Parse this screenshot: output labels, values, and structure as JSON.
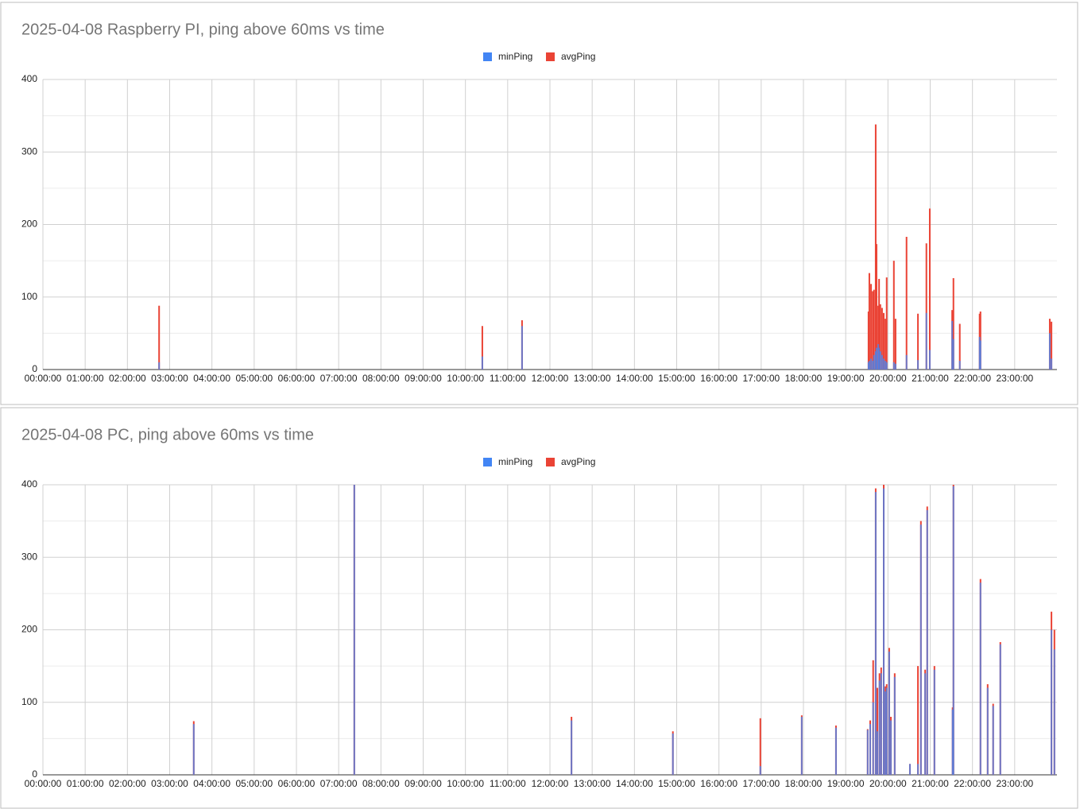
{
  "chart_data": [
    {
      "type": "bar",
      "title": "2025-04-08 Raspberry PI, ping above 60ms vs time",
      "x": [
        2.75,
        10.4,
        11.34,
        19.54,
        19.56,
        19.6,
        19.64,
        19.67,
        19.71,
        19.73,
        19.77,
        19.79,
        19.82,
        19.86,
        19.9,
        19.94,
        19.97,
        20.14,
        20.18,
        20.44,
        20.71,
        20.91,
        20.99,
        21.52,
        21.55,
        21.7,
        22.17,
        22.19,
        23.83,
        23.87
      ],
      "series": [
        {
          "name": "minPing",
          "color": "#4285f4",
          "values": [
            10,
            18,
            60,
            10,
            12,
            15,
            12,
            20,
            25,
            30,
            35,
            30,
            25,
            20,
            15,
            12,
            10,
            10,
            8,
            20,
            13,
            78,
            27,
            67,
            42,
            12,
            45,
            40,
            50,
            15
          ]
        },
        {
          "name": "avgPing",
          "color": "#ea4335",
          "values": [
            88,
            60,
            68,
            80,
            133,
            118,
            108,
            110,
            338,
            173,
            88,
            125,
            90,
            85,
            78,
            70,
            127,
            150,
            70,
            183,
            77,
            174,
            222,
            82,
            126,
            63,
            77,
            80,
            70,
            66
          ]
        }
      ],
      "xlim": [
        0,
        24
      ],
      "ylim": [
        0,
        400
      ],
      "xticks": [
        {
          "value": 0,
          "label": "00:00:00"
        },
        {
          "value": 1,
          "label": "01:00:00"
        },
        {
          "value": 2,
          "label": "02:00:00"
        },
        {
          "value": 3,
          "label": "03:00:00"
        },
        {
          "value": 4,
          "label": "04:00:00"
        },
        {
          "value": 5,
          "label": "05:00:00"
        },
        {
          "value": 6,
          "label": "06:00:00"
        },
        {
          "value": 7,
          "label": "07:00:00"
        },
        {
          "value": 8,
          "label": "08:00:00"
        },
        {
          "value": 9,
          "label": "09:00:00"
        },
        {
          "value": 10,
          "label": "10:00:00"
        },
        {
          "value": 11,
          "label": "11:00:00"
        },
        {
          "value": 12,
          "label": "12:00:00"
        },
        {
          "value": 13,
          "label": "13:00:00"
        },
        {
          "value": 14,
          "label": "14:00:00"
        },
        {
          "value": 15,
          "label": "15:00:00"
        },
        {
          "value": 16,
          "label": "16:00:00"
        },
        {
          "value": 17,
          "label": "17:00:00"
        },
        {
          "value": 18,
          "label": "18:00:00"
        },
        {
          "value": 19,
          "label": "19:00:00"
        },
        {
          "value": 20,
          "label": "20:00:00"
        },
        {
          "value": 21,
          "label": "21:00:00"
        },
        {
          "value": 22,
          "label": "22:00:00"
        },
        {
          "value": 23,
          "label": "23:00:00"
        }
      ],
      "yticks": [
        0,
        100,
        200,
        300,
        400
      ],
      "minor_yticks": [
        50,
        150,
        250,
        350
      ],
      "grid": true,
      "legend": "top"
    },
    {
      "type": "bar",
      "title": "2025-04-08 PC, ping above 60ms vs time",
      "x": [
        3.57,
        7.37,
        12.51,
        14.91,
        16.98,
        17.96,
        18.77,
        19.52,
        19.58,
        19.65,
        19.71,
        19.75,
        19.8,
        19.84,
        19.9,
        19.94,
        19.97,
        20.03,
        20.07,
        20.16,
        20.52,
        20.71,
        20.78,
        20.88,
        20.93,
        21.1,
        21.53,
        21.55,
        22.19,
        22.36,
        22.49,
        22.66,
        23.87,
        23.94
      ],
      "series": [
        {
          "name": "minPing",
          "color": "#4285f4",
          "values": [
            70,
            400,
            75,
            57,
            12,
            80,
            65,
            62,
            70,
            100,
            390,
            60,
            130,
            140,
            395,
            115,
            120,
            170,
            75,
            135,
            15,
            15,
            345,
            140,
            365,
            145,
            90,
            398,
            265,
            120,
            95,
            180,
            200,
            173
          ]
        },
        {
          "name": "avgPing",
          "color": "#ea4335",
          "values": [
            74,
            400,
            80,
            60,
            78,
            82,
            68,
            63,
            75,
            158,
            395,
            120,
            140,
            148,
            400,
            122,
            125,
            175,
            80,
            140,
            15,
            150,
            350,
            145,
            370,
            150,
            93,
            400,
            270,
            125,
            98,
            183,
            225,
            200
          ]
        }
      ],
      "xlim": [
        0,
        24
      ],
      "ylim": [
        0,
        400
      ],
      "xticks": [
        {
          "value": 0,
          "label": "00:00:00"
        },
        {
          "value": 1,
          "label": "01:00:00"
        },
        {
          "value": 2,
          "label": "02:00:00"
        },
        {
          "value": 3,
          "label": "03:00:00"
        },
        {
          "value": 4,
          "label": "04:00:00"
        },
        {
          "value": 5,
          "label": "05:00:00"
        },
        {
          "value": 6,
          "label": "06:00:00"
        },
        {
          "value": 7,
          "label": "07:00:00"
        },
        {
          "value": 8,
          "label": "08:00:00"
        },
        {
          "value": 9,
          "label": "09:00:00"
        },
        {
          "value": 10,
          "label": "10:00:00"
        },
        {
          "value": 11,
          "label": "11:00:00"
        },
        {
          "value": 12,
          "label": "12:00:00"
        },
        {
          "value": 13,
          "label": "13:00:00"
        },
        {
          "value": 14,
          "label": "14:00:00"
        },
        {
          "value": 15,
          "label": "15:00:00"
        },
        {
          "value": 16,
          "label": "16:00:00"
        },
        {
          "value": 17,
          "label": "17:00:00"
        },
        {
          "value": 18,
          "label": "18:00:00"
        },
        {
          "value": 19,
          "label": "19:00:00"
        },
        {
          "value": 20,
          "label": "20:00:00"
        },
        {
          "value": 21,
          "label": "21:00:00"
        },
        {
          "value": 22,
          "label": "22:00:00"
        },
        {
          "value": 23,
          "label": "23:00:00"
        }
      ],
      "yticks": [
        0,
        100,
        200,
        300,
        400
      ],
      "minor_yticks": [
        50,
        150,
        250,
        350
      ],
      "grid": true,
      "legend": "top"
    }
  ]
}
